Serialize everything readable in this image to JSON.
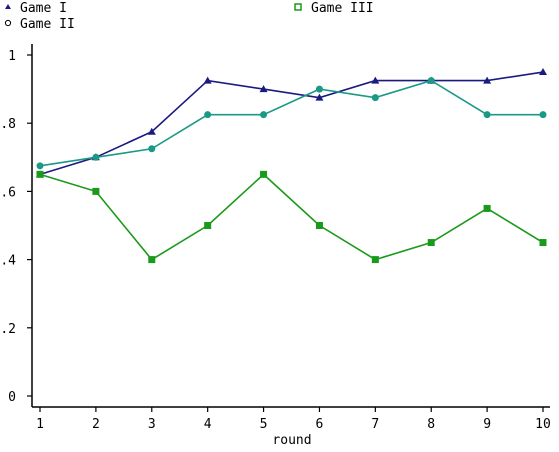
{
  "chart_data": {
    "type": "line",
    "title": "",
    "xlabel": "round",
    "ylabel": "",
    "x": [
      1,
      2,
      3,
      4,
      5,
      6,
      7,
      8,
      9,
      10
    ],
    "xticks": [
      "1",
      "2",
      "3",
      "4",
      "5",
      "6",
      "7",
      "8",
      "9",
      "10"
    ],
    "yticks": [
      0,
      0.2,
      0.4,
      0.6,
      0.8,
      1
    ],
    "ytick_labels": [
      "0",
      ".2",
      ".4",
      ".6",
      ".8",
      "1"
    ],
    "xlim": [
      1,
      10
    ],
    "ylim": [
      0,
      1
    ],
    "grid": false,
    "legend_placement": "top",
    "series": [
      {
        "name": "Game I",
        "marker": "triangle",
        "color": "#1a1a80",
        "values": [
          0.65,
          0.7,
          0.775,
          0.925,
          0.9,
          0.875,
          0.925,
          0.925,
          0.925,
          0.95
        ]
      },
      {
        "name": "Game II",
        "marker": "circle",
        "color": "#1a9985",
        "values": [
          0.675,
          0.7,
          0.725,
          0.825,
          0.825,
          0.9,
          0.875,
          0.925,
          0.825,
          0.825
        ]
      },
      {
        "name": "Game III",
        "marker": "square",
        "color": "#1a9a1a",
        "values": [
          0.65,
          0.6,
          0.4,
          0.5,
          0.65,
          0.5,
          0.4,
          0.45,
          0.55,
          0.45
        ]
      }
    ]
  }
}
